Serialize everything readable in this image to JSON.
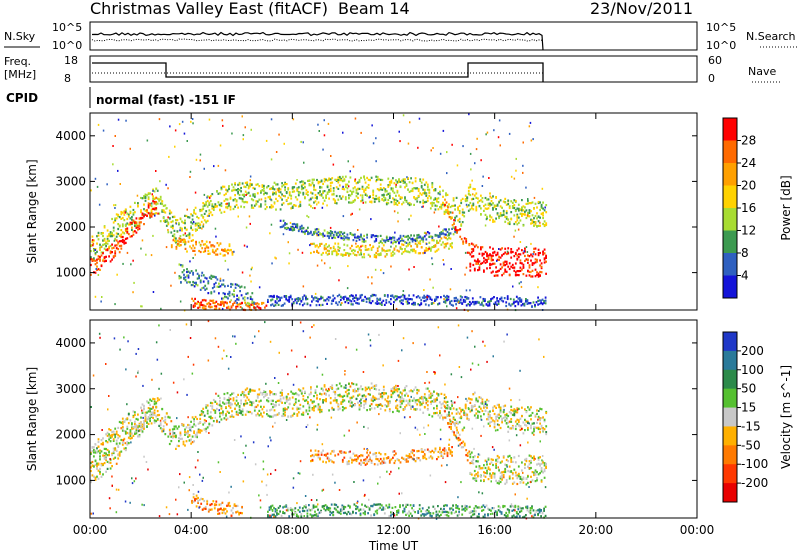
{
  "header": {
    "station": "Christmas Valley East (fitACF)",
    "beam": "Beam 14",
    "date": "23/Nov/2011"
  },
  "panels": {
    "nsky": {
      "left_label": "N.Sky",
      "right_label": "N.Search",
      "left_ticks": [
        "10^5",
        "10^0"
      ],
      "right_ticks": [
        "10^5",
        "10^0"
      ]
    },
    "freq": {
      "left_label_1": "Freq.",
      "left_label_2": "[MHz]",
      "right_label": "Nave",
      "left_ticks": [
        "18",
        "8"
      ],
      "right_ticks": [
        "60",
        "0"
      ]
    },
    "cpid": {
      "label": "CPID",
      "text": "normal (fast) -151 IF"
    }
  },
  "chart_data": [
    {
      "type": "heatmap",
      "name": "power",
      "ylabel": "Slant Range [km]",
      "yticks": [
        "4000",
        "3000",
        "2000",
        "1000"
      ],
      "ylim": [
        180,
        4500
      ],
      "xlim": [
        0,
        24
      ],
      "data_end_hour": 18,
      "colorbar": {
        "label": "Power [dB]",
        "ticks": [
          "28",
          "24",
          "20",
          "16",
          "12",
          "8",
          "4"
        ],
        "colors": [
          "#ff0000",
          "#ff6a00",
          "#ffa000",
          "#ffd200",
          "#a8dc32",
          "#3c9a50",
          "#2f60c0",
          "#1414d8"
        ]
      },
      "echo_bands": [
        {
          "t": [
            0.0,
            1.0,
            2.0,
            2.6,
            3.0,
            3.4,
            4.0,
            5.0,
            6.0,
            7.0,
            8.0,
            9.0,
            10.0,
            11.0,
            12.0,
            13.0,
            14.0,
            14.6,
            15.0,
            16.0,
            17.0,
            18.0
          ],
          "r": [
            1500,
            2000,
            2400,
            2600,
            2200,
            1900,
            2100,
            2600,
            2750,
            2700,
            2700,
            2800,
            2850,
            2850,
            2800,
            2800,
            2600,
            2300,
            2700,
            2400,
            2350,
            2300
          ],
          "w": 420,
          "level": 0.45
        },
        {
          "t": [
            0.0,
            0.5,
            1.0,
            1.5,
            2.0,
            2.6
          ],
          "r": [
            1150,
            1300,
            1550,
            1900,
            2200,
            2550
          ],
          "w": 260,
          "level": 0.9
        },
        {
          "t": [
            3.2,
            4.0,
            4.8,
            5.6
          ],
          "r": [
            1700,
            1600,
            1550,
            1500
          ],
          "w": 200,
          "level": 0.7
        },
        {
          "t": [
            7.5,
            8.5,
            9.5,
            10.5,
            11.5,
            12.5,
            13.5,
            14.5
          ],
          "r": [
            2100,
            1950,
            1850,
            1800,
            1750,
            1750,
            1850,
            1950
          ],
          "w": 120,
          "level": 0.25
        },
        {
          "t": [
            8.7,
            9.5,
            10.5,
            11.5,
            12.5,
            13.5,
            14.3
          ],
          "r": [
            1550,
            1550,
            1500,
            1500,
            1550,
            1600,
            1700
          ],
          "w": 200,
          "level": 0.55
        },
        {
          "t": [
            14.0,
            14.5,
            15.0
          ],
          "r": [
            2500,
            2000,
            1500
          ],
          "w": 200,
          "level": 0.8
        },
        {
          "t": [
            15.0,
            16.0,
            17.0,
            18.0
          ],
          "r": [
            1350,
            1250,
            1250,
            1250
          ],
          "w": 450,
          "level": 0.95
        },
        {
          "t": [
            3.5,
            4.5,
            5.5,
            6.5
          ],
          "r": [
            1000,
            800,
            600,
            450
          ],
          "w": 300,
          "level": 0.25
        },
        {
          "t": [
            4.0,
            4.5,
            5.0,
            5.5,
            6.0,
            7.0
          ],
          "r": [
            380,
            320,
            300,
            280,
            260,
            260
          ],
          "w": 150,
          "level": 0.85
        },
        {
          "t": [
            7.0,
            10.0,
            13.0,
            16.0,
            18.0
          ],
          "r": [
            400,
            430,
            420,
            400,
            380
          ],
          "w": 160,
          "level": 0.15
        }
      ]
    },
    {
      "type": "heatmap",
      "name": "velocity",
      "ylabel": "Slant Range [km]",
      "yticks": [
        "4000",
        "3000",
        "2000",
        "1000"
      ],
      "ylim": [
        180,
        4500
      ],
      "xlim": [
        0,
        24
      ],
      "data_end_hour": 18,
      "xticks": [
        "00:00",
        "04:00",
        "08:00",
        "12:00",
        "16:00",
        "20:00",
        "00:00"
      ],
      "xlabel": "Time UT",
      "colorbar": {
        "label": "Velocity [m s^-1]",
        "ticks": [
          "200",
          "100",
          "50",
          "15",
          "-15",
          "-50",
          "-100",
          "-200"
        ],
        "colors": [
          "#2038c8",
          "#2a7a9a",
          "#2c8a4a",
          "#55c030",
          "#c8c8c8",
          "#ffb000",
          "#ff7a00",
          "#ff3800",
          "#e80000"
        ]
      },
      "echo_bands": [
        {
          "t": [
            0.0,
            1.0,
            2.0,
            2.6,
            3.0,
            3.4,
            4.0,
            5.0,
            6.0,
            7.0,
            8.0,
            9.0,
            10.0,
            11.0,
            12.0,
            13.0,
            14.0,
            14.6,
            15.0,
            16.0,
            17.0,
            18.0
          ],
          "r": [
            1500,
            2000,
            2400,
            2600,
            2200,
            1900,
            2100,
            2600,
            2750,
            2700,
            2700,
            2800,
            2850,
            2850,
            2800,
            2800,
            2600,
            2300,
            2700,
            2400,
            2350,
            2300
          ],
          "w": 420,
          "level": 0.5
        },
        {
          "t": [
            0.0,
            0.5,
            1.0,
            1.5,
            2.0,
            2.6
          ],
          "r": [
            1150,
            1300,
            1550,
            1900,
            2200,
            2550
          ],
          "w": 260,
          "level": 0.5
        },
        {
          "t": [
            8.7,
            9.5,
            10.5,
            11.5,
            12.5,
            13.5,
            14.3
          ],
          "r": [
            1550,
            1550,
            1500,
            1500,
            1550,
            1600,
            1700
          ],
          "w": 200,
          "level": 0.35
        },
        {
          "t": [
            14.0,
            14.5,
            15.0
          ],
          "r": [
            2500,
            2000,
            1500
          ],
          "w": 200,
          "level": 0.35
        },
        {
          "t": [
            15.0,
            16.0,
            17.0,
            18.0
          ],
          "r": [
            1350,
            1250,
            1250,
            1250
          ],
          "w": 450,
          "level": 0.5
        },
        {
          "t": [
            4.0,
            4.5,
            5.0,
            5.5,
            6.0
          ],
          "r": [
            600,
            500,
            420,
            380,
            360
          ],
          "w": 200,
          "level": 0.3
        },
        {
          "t": [
            7.0,
            10.0,
            13.0,
            16.0,
            18.0
          ],
          "r": [
            350,
            380,
            370,
            350,
            330
          ],
          "w": 180,
          "level": 0.68
        }
      ]
    }
  ]
}
